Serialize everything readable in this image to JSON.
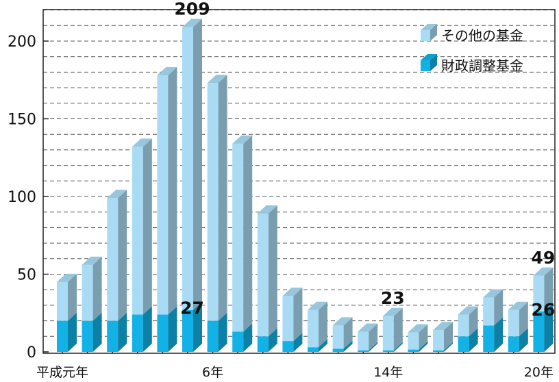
{
  "chart_data": {
    "type": "bar",
    "stacked": true,
    "style": "3d",
    "x_labels": [
      {
        "index": 0,
        "label": "平成元年"
      },
      {
        "index": 6,
        "label": "6年"
      },
      {
        "index": 13,
        "label": "14年"
      },
      {
        "index": 19,
        "label": "20年"
      }
    ],
    "series": [
      {
        "name": "財政調整基金",
        "color": "#12b2e6",
        "values": [
          20,
          20,
          20,
          24,
          24,
          27,
          20,
          13,
          10,
          7,
          3,
          2,
          1,
          1,
          1.5,
          1,
          10,
          17,
          10,
          26
        ]
      },
      {
        "name": "その他の基金",
        "color": "#a9dcf4",
        "values": [
          25,
          36,
          79,
          108,
          154,
          182,
          153,
          121,
          79,
          29,
          24,
          15,
          12,
          22,
          11,
          13,
          14,
          18,
          17,
          23
        ]
      }
    ],
    "totals": [
      45,
      56,
      99,
      132,
      178,
      209,
      173,
      134,
      89,
      36,
      27,
      17,
      13,
      23,
      12.5,
      14,
      24,
      35,
      27,
      49
    ],
    "annotations": [
      {
        "index": 5,
        "text": "209",
        "anchor": "total"
      },
      {
        "index": 5,
        "text": "27",
        "anchor": "base"
      },
      {
        "index": 13,
        "text": "23",
        "anchor": "total"
      },
      {
        "index": 19,
        "text": "49",
        "anchor": "total"
      },
      {
        "index": 19,
        "text": "26",
        "anchor": "base"
      }
    ],
    "y_ticks": [
      0,
      50,
      100,
      150,
      200
    ],
    "ylim": [
      0,
      220
    ],
    "minor_grid_step": 10,
    "grid": true,
    "legend": "top-right",
    "legend_order": [
      "その他の基金",
      "財政調整基金"
    ]
  }
}
